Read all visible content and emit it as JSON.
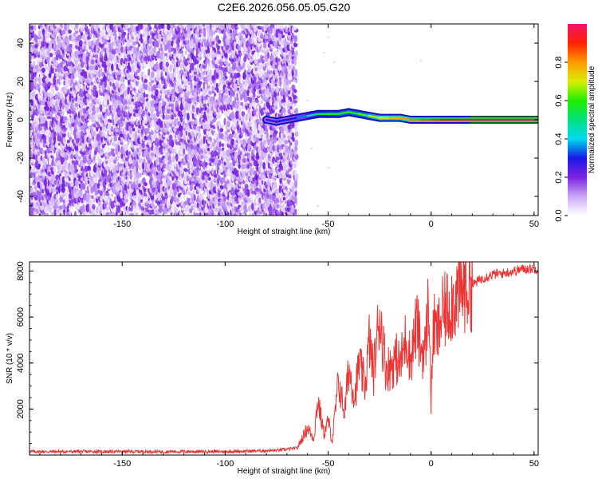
{
  "title": "C2E6.2026.056.05.05.G20",
  "chart_data": [
    {
      "type": "heatmap",
      "name": "spectrogram",
      "xlabel": "Height of straight line (km)",
      "ylabel": "Frequency (Hz)",
      "xlim": [
        -195,
        52
      ],
      "ylim": [
        -50,
        50
      ],
      "xticks": [
        -150,
        -100,
        -50,
        0,
        50
      ],
      "xtick_labels": [
        "-150",
        "-100",
        "-50",
        "0",
        "50"
      ],
      "yticks": [
        -40,
        -20,
        0,
        20,
        40
      ],
      "ytick_labels": [
        "-40",
        "-20",
        "0",
        "20",
        "40"
      ],
      "noise_region_x": [
        -195,
        -65
      ],
      "signal_onset_x": -80,
      "signal_track": [
        {
          "x": -80,
          "y": 0,
          "amp": 0.25
        },
        {
          "x": -75,
          "y": -1,
          "amp": 0.3
        },
        {
          "x": -70,
          "y": 0,
          "amp": 0.3
        },
        {
          "x": -65,
          "y": 1,
          "amp": 0.3
        },
        {
          "x": -60,
          "y": 2,
          "amp": 0.4
        },
        {
          "x": -55,
          "y": 3,
          "amp": 0.5
        },
        {
          "x": -50,
          "y": 3,
          "amp": 0.55
        },
        {
          "x": -45,
          "y": 3,
          "amp": 0.6
        },
        {
          "x": -40,
          "y": 4,
          "amp": 0.6
        },
        {
          "x": -35,
          "y": 3,
          "amp": 0.6
        },
        {
          "x": -30,
          "y": 2,
          "amp": 0.65
        },
        {
          "x": -25,
          "y": 1,
          "amp": 0.7
        },
        {
          "x": -20,
          "y": 1,
          "amp": 0.75
        },
        {
          "x": -15,
          "y": 1,
          "amp": 0.8
        },
        {
          "x": -10,
          "y": 0,
          "amp": 0.8
        },
        {
          "x": -5,
          "y": 0,
          "amp": 0.85
        },
        {
          "x": 0,
          "y": 0,
          "amp": 0.85
        },
        {
          "x": 5,
          "y": 0,
          "amp": 0.9
        },
        {
          "x": 10,
          "y": 0,
          "amp": 0.9
        },
        {
          "x": 15,
          "y": 0,
          "amp": 0.95
        },
        {
          "x": 20,
          "y": 0,
          "amp": 1.0
        },
        {
          "x": 30,
          "y": 0,
          "amp": 1.0
        },
        {
          "x": 40,
          "y": 0,
          "amp": 1.0
        },
        {
          "x": 52,
          "y": 0,
          "amp": 1.0
        }
      ]
    },
    {
      "type": "line",
      "name": "snr",
      "xlabel": "Height of straight line (km)",
      "ylabel": "SNR (10 * v/v)",
      "xlim": [
        -195,
        52
      ],
      "ylim": [
        0,
        8400
      ],
      "xticks": [
        -150,
        -100,
        -50,
        0,
        50
      ],
      "xtick_labels": [
        "-150",
        "-100",
        "-50",
        "0",
        "50"
      ],
      "yticks": [
        2000,
        4000,
        6000,
        8000
      ],
      "ytick_labels": [
        "2000",
        "4000",
        "6000",
        "8000"
      ],
      "series": [
        {
          "name": "SNR",
          "color": "#ee3333",
          "x": [
            -195,
            -150,
            -100,
            -75,
            -65,
            -60,
            -57,
            -55,
            -52,
            -50,
            -48,
            -45,
            -42,
            -40,
            -37,
            -35,
            -32,
            -30,
            -28,
            -25,
            -22,
            -20,
            -17,
            -15,
            -12,
            -10,
            -7,
            -5,
            -3,
            -1,
            0,
            1,
            3,
            5,
            10,
            15,
            20,
            25,
            30,
            35,
            40,
            45,
            52
          ],
          "y": [
            150,
            150,
            150,
            200,
            300,
            1200,
            700,
            2400,
            900,
            1500,
            600,
            3200,
            1800,
            3800,
            2500,
            4000,
            3000,
            5000,
            3500,
            6200,
            3800,
            3800,
            4200,
            3900,
            5200,
            4100,
            5800,
            4600,
            4500,
            7000,
            2000,
            5600,
            5200,
            6000,
            6700,
            7200,
            7400,
            7700,
            7850,
            7900,
            8000,
            8100,
            8100
          ]
        }
      ]
    }
  ],
  "colorbar": {
    "label": "Normalized spectral amplitude",
    "range": [
      0,
      1
    ],
    "ticks": [
      0.0,
      0.2,
      0.4,
      0.6,
      0.8
    ],
    "tick_labels": [
      "0.0",
      "0.2",
      "0.4",
      "0.6",
      "0.8"
    ],
    "colors": [
      "#ffffff",
      "#c9a7f5",
      "#7b22e0",
      "#1a1ae8",
      "#00d9f0",
      "#00e080",
      "#22ee00",
      "#d8ee00",
      "#ff9900",
      "#ff2200",
      "#f0106a"
    ]
  }
}
